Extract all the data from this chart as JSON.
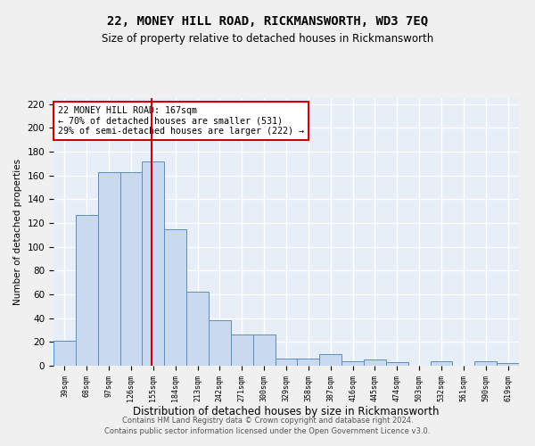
{
  "title": "22, MONEY HILL ROAD, RICKMANSWORTH, WD3 7EQ",
  "subtitle": "Size of property relative to detached houses in Rickmansworth",
  "xlabel": "Distribution of detached houses by size in Rickmansworth",
  "ylabel": "Number of detached properties",
  "bin_labels": [
    "39sqm",
    "68sqm",
    "97sqm",
    "126sqm",
    "155sqm",
    "184sqm",
    "213sqm",
    "242sqm",
    "271sqm",
    "300sqm",
    "329sqm",
    "358sqm",
    "387sqm",
    "416sqm",
    "445sqm",
    "474sqm",
    "503sqm",
    "532sqm",
    "561sqm",
    "590sqm",
    "619sqm"
  ],
  "bar_heights": [
    21,
    127,
    163,
    163,
    172,
    115,
    62,
    38,
    26,
    26,
    6,
    6,
    10,
    4,
    5,
    3,
    0,
    4,
    0,
    4,
    2
  ],
  "bar_color": "#c9d9ef",
  "bar_edge_color": "#5a8fc3",
  "background_color": "#e8eef8",
  "grid_color": "#ffffff",
  "marker_line_color": "#cc0000",
  "annotation_text": "22 MONEY HILL ROAD: 167sqm\n← 70% of detached houses are smaller (531)\n29% of semi-detached houses are larger (222) →",
  "footer_line1": "Contains HM Land Registry data © Crown copyright and database right 2024.",
  "footer_line2": "Contains public sector information licensed under the Open Government Licence v3.0.",
  "fig_bg": "#f0f0f0",
  "ylim": [
    0,
    225
  ],
  "yticks": [
    0,
    20,
    40,
    60,
    80,
    100,
    120,
    140,
    160,
    180,
    200,
    220
  ]
}
